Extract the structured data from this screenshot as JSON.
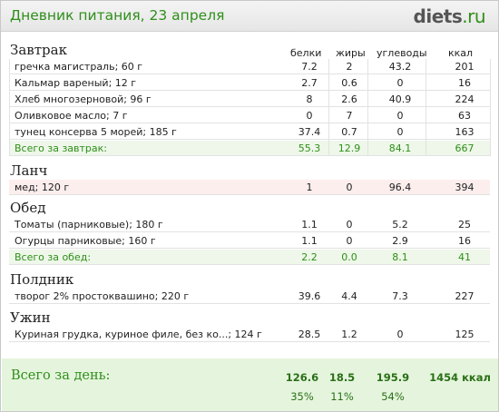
{
  "header": {
    "title": "Дневник питания, 23 апреля",
    "logo_main": "diets",
    "logo_suffix": ".ru"
  },
  "columns": {
    "protein": "белки",
    "fat": "жиры",
    "carbs": "углеводы",
    "kcal": "ккал"
  },
  "meals": {
    "breakfast": {
      "title": "Завтрак",
      "items": [
        {
          "name": "гречка магистраль; 60 г",
          "p": "7.2",
          "f": "2",
          "c": "43.2",
          "k": "201"
        },
        {
          "name": "Кальмар вареный; 12 г",
          "p": "2.7",
          "f": "0.6",
          "c": "0",
          "k": "16"
        },
        {
          "name": "Хлеб многозерновой; 96 г",
          "p": "8",
          "f": "2.6",
          "c": "40.9",
          "k": "224"
        },
        {
          "name": "Оливковое масло; 7 г",
          "p": "0",
          "f": "7",
          "c": "0",
          "k": "63"
        },
        {
          "name": "тунец консерва 5 морей; 185 г",
          "p": "37.4",
          "f": "0.7",
          "c": "0",
          "k": "163"
        }
      ],
      "total": {
        "name": "Всего за завтрак:",
        "p": "55.3",
        "f": "12.9",
        "c": "84.1",
        "k": "667"
      }
    },
    "lunch": {
      "title": "Ланч",
      "items": [
        {
          "name": "мед; 120 г",
          "p": "1",
          "f": "0",
          "c": "96.4",
          "k": "394"
        }
      ]
    },
    "dinner": {
      "title": "Обед",
      "items": [
        {
          "name": "Томаты (парниковые); 180 г",
          "p": "1.1",
          "f": "0",
          "c": "5.2",
          "k": "25"
        },
        {
          "name": "Огурцы парниковые; 160 г",
          "p": "1.1",
          "f": "0",
          "c": "2.9",
          "k": "16"
        }
      ],
      "total": {
        "name": "Всего за обед:",
        "p": "2.2",
        "f": "0.0",
        "c": "8.1",
        "k": "41"
      }
    },
    "snack": {
      "title": "Полдник",
      "items": [
        {
          "name": "творог 2% простоквашино; 220 г",
          "p": "39.6",
          "f": "4.4",
          "c": "7.3",
          "k": "227"
        }
      ]
    },
    "supper": {
      "title": "Ужин",
      "items": [
        {
          "name": "Куриная грудка, куриное филе, без ко...; 124 г",
          "p": "28.5",
          "f": "1.2",
          "c": "0",
          "k": "125"
        }
      ]
    }
  },
  "day_total": {
    "label": "Всего за день:",
    "protein": "126.6",
    "fat": "18.5",
    "carbs": "195.9",
    "kcal": "1454 ккал",
    "protein_pct": "35%",
    "fat_pct": "11%",
    "carbs_pct": "54%"
  },
  "colors": {
    "accent_green": "#2f8f1a",
    "total_row_bg": "#eef7e9",
    "highlight_row_bg": "#fdeeee",
    "summary_bg": "#e5f5dd"
  }
}
